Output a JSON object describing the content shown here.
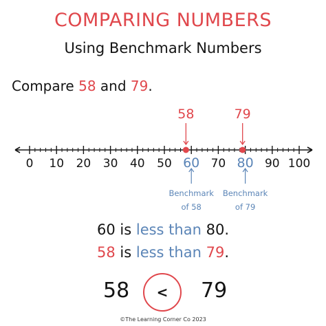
{
  "title": "COMPARING NUMBERS",
  "subtitle": "Using Benchmark Numbers",
  "compare": {
    "prefix": "Compare",
    "a": "58",
    "conj": "and",
    "b": "79",
    "suffix": "."
  },
  "number_line": {
    "ticks": [
      0,
      10,
      20,
      30,
      40,
      50,
      60,
      70,
      80,
      90,
      100
    ],
    "benchmarks": [
      60,
      80
    ],
    "points": [
      {
        "label": "58",
        "value": 58
      },
      {
        "label": "79",
        "value": 79
      }
    ],
    "benchmark_notes": [
      {
        "line1": "Benchmark",
        "line2": "of 58",
        "value": 60
      },
      {
        "line1": "Benchmark",
        "line2": "of 79",
        "value": 80
      }
    ]
  },
  "statements": [
    {
      "a": "60",
      "is": "is",
      "rel": "less than",
      "b": "80",
      "end": "."
    },
    {
      "a": "58",
      "is": "is",
      "rel": "less than",
      "b": "79",
      "end": "."
    }
  ],
  "final": {
    "left": "58",
    "symbol": "<",
    "right": "79"
  },
  "footer": "©The Learning Corner Co 2023",
  "colors": {
    "accent_red": "#e0474c",
    "accent_blue": "#5b85b7",
    "text": "#141414"
  }
}
